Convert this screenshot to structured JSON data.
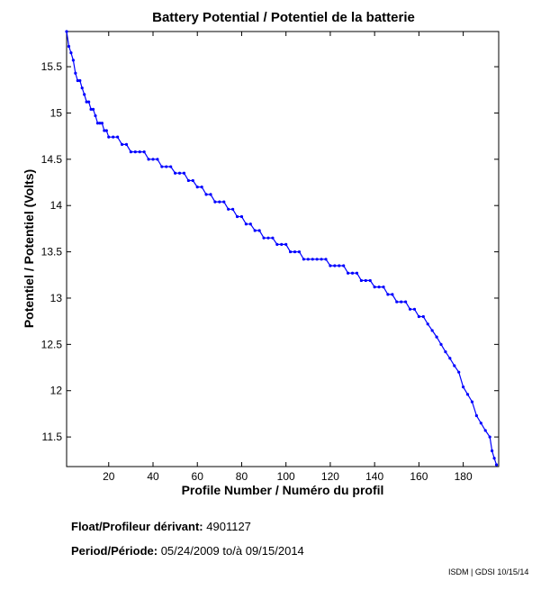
{
  "chart_data": {
    "type": "line",
    "title": "Battery Potential / Potentiel de la batterie",
    "xlabel": "Profile Number / Numéro du profil",
    "ylabel": "Potentiel / Potentiel (Volts)",
    "xlim": [
      1,
      196
    ],
    "ylim": [
      11.18,
      15.88
    ],
    "xticks": [
      20,
      40,
      60,
      80,
      100,
      120,
      140,
      160,
      180
    ],
    "yticks": [
      11.5,
      12,
      12.5,
      13,
      13.5,
      14,
      14.5,
      15,
      15.5
    ],
    "grid": false,
    "color": "#0000ff",
    "series": [
      {
        "x": [
          1,
          2,
          3,
          4,
          5,
          6,
          7,
          8,
          9,
          10,
          11,
          12,
          13,
          14,
          15,
          16,
          17,
          18,
          19,
          20,
          22,
          24,
          26,
          28,
          30,
          32,
          34,
          36,
          38,
          40,
          42,
          44,
          46,
          48,
          50,
          52,
          54,
          56,
          58,
          60,
          62,
          64,
          66,
          68,
          70,
          72,
          74,
          76,
          78,
          80,
          82,
          84,
          86,
          88,
          90,
          92,
          94,
          96,
          98,
          100,
          102,
          104,
          106,
          108,
          110,
          112,
          114,
          116,
          118,
          120,
          122,
          124,
          126,
          128,
          130,
          132,
          134,
          136,
          138,
          140,
          142,
          144,
          146,
          148,
          150,
          152,
          154,
          156,
          158,
          160,
          162,
          164,
          166,
          168,
          170,
          172,
          174,
          176,
          178,
          180,
          182,
          184,
          186,
          188,
          190,
          192,
          193,
          194,
          195
        ],
        "y": [
          15.88,
          15.72,
          15.65,
          15.57,
          15.43,
          15.35,
          15.35,
          15.27,
          15.2,
          15.12,
          15.12,
          15.04,
          15.04,
          14.97,
          14.89,
          14.89,
          14.89,
          14.81,
          14.81,
          14.74,
          14.74,
          14.74,
          14.66,
          14.66,
          14.58,
          14.58,
          14.58,
          14.58,
          14.5,
          14.5,
          14.5,
          14.42,
          14.42,
          14.42,
          14.35,
          14.35,
          14.35,
          14.27,
          14.27,
          14.2,
          14.2,
          14.12,
          14.12,
          14.04,
          14.04,
          14.04,
          13.96,
          13.96,
          13.88,
          13.88,
          13.8,
          13.8,
          13.73,
          13.73,
          13.65,
          13.65,
          13.65,
          13.58,
          13.58,
          13.58,
          13.5,
          13.5,
          13.5,
          13.42,
          13.42,
          13.42,
          13.42,
          13.42,
          13.42,
          13.35,
          13.35,
          13.35,
          13.35,
          13.27,
          13.27,
          13.27,
          13.19,
          13.19,
          13.19,
          13.12,
          13.12,
          13.12,
          13.04,
          13.04,
          12.96,
          12.96,
          12.96,
          12.88,
          12.88,
          12.8,
          12.8,
          12.72,
          12.65,
          12.58,
          12.5,
          12.42,
          12.35,
          12.27,
          12.2,
          12.04,
          11.96,
          11.88,
          11.73,
          11.65,
          11.57,
          11.5,
          11.35,
          11.27,
          11.2
        ]
      }
    ]
  },
  "info": {
    "float_label": "Float/Profileur dérivant:",
    "float_value": "4901127",
    "period_label": "Period/Période:",
    "period_start": "05/24/2009",
    "period_sep": "to/à",
    "period_end": "09/15/2014",
    "credit": "ISDM | GDSI 10/15/14"
  }
}
